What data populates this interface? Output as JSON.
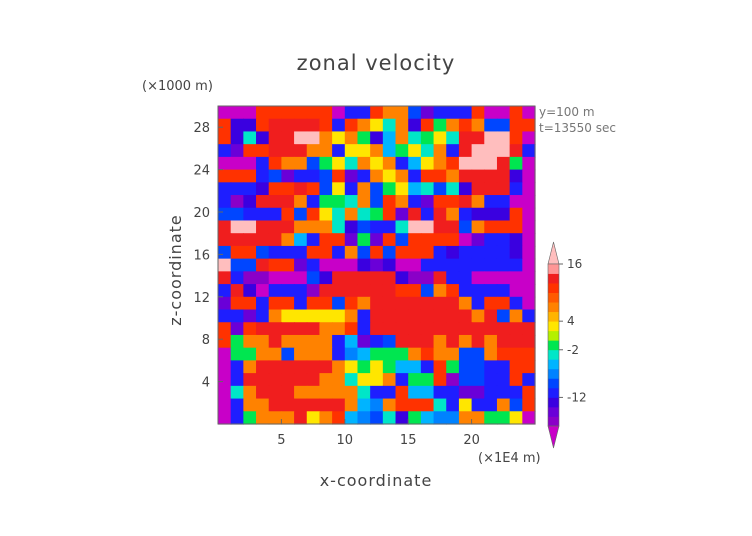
{
  "chart_data": {
    "type": "heatmap",
    "title": "zonal velocity",
    "xlabel": "x-coordinate",
    "ylabel": "z-coordinate",
    "x_unit": "(×1E4 m)",
    "y_unit": "(×1000 m)",
    "annotations": [
      "y=100 m",
      "t=13550 sec"
    ],
    "xlim": [
      0,
      25
    ],
    "ylim": [
      0,
      30
    ],
    "x_ticks": [
      5,
      10,
      15,
      20
    ],
    "y_ticks": [
      4,
      8,
      12,
      16,
      20,
      24,
      28
    ],
    "colorbar": {
      "levels": [
        -18,
        -16,
        -14,
        -12,
        -10,
        -8,
        -6,
        -4,
        -2,
        0,
        2,
        4,
        6,
        8,
        10,
        12,
        14,
        16,
        18
      ],
      "colors": [
        "#c800c8",
        "#8a00c8",
        "#6a00d8",
        "#3a00e0",
        "#1e1eff",
        "#0046ff",
        "#0082ff",
        "#00b4ff",
        "#00e6c8",
        "#00e650",
        "#b4f000",
        "#ffe600",
        "#ffb400",
        "#ff8200",
        "#ff5a00",
        "#ff3200",
        "#f01e1e",
        "#ff9696",
        "#ffbebe"
      ],
      "tick_labels": [
        "16",
        "4",
        "-2",
        "-12"
      ],
      "tick_values": [
        16,
        4,
        -2,
        -12
      ]
    },
    "field_rows": [
      "WWWFFFFFFWBBFOOKNBBBFWWFW",
      "FDDFMMMMFBFOYEODFGOFOKKFF",
      "FDEDMMPPOYOGDLOEGYEMMPPFW",
      "BNFFMMMOOBYYOLGYEOBMPPPMB",
      "WWWBFOOKGYEOYOBLYOFPPPMGW",
      "FFFBKNBBKFNBOYOBFFOMMMMDW",
      "BBBDFFMFKYBOKGYLEKEDMMMBW",
      "BCDMMMOBGGEOKFOBNFFMOBBWW",
      "KKBBBFKFYEOEGFNMBMOBDDDFW",
      "MPPMMMOOOEDKBBEPPMMKOFFFW",
      "MMMMMOLBFFNGNFKFFFFWNBBDW",
      "KFFKBBBFFBOKFKFFFBDBBBBDW",
      "PKKMFFNBWWWDNDWWBBBBBBBBW",
      "MBCCWWWKDMMMMMDCCMBBWWWWW",
      "BMDWBBBCMMMMMMFFKOFBBBBWW",
      "NFFBFFBFFKFOMMMMMMMOBFFBW",
      "BBNBOYYYYYOBMMMMMMMMOMKOB",
      "FNFMMMMMOOFBMMMMMMMMMMMMM",
      "FGOOMOOOOBLNBKMMMOMOMOMMM",
      "WGGOOKOOOBHLGGGOFOOKKOFFF",
      "WBOMMMMMMOYGYGLLBFGKKBBFF",
      "WBMMMMMMOOEYYOBGGFCKKBBFB",
      "WEOMMMOOOOOEBBFLLBBNNBBBF",
      "WBOOMMMMMMOLHOFFFEBYBBOKF",
      "WBGOOOMYOFLHKEDGLHHOOGGYW"
    ],
    "field_legend": {
      "W": -18,
      "C": -16,
      "N": -14,
      "D": -12,
      "B": -10,
      "K": -8,
      "H": -6,
      "L": -4,
      "E": -2,
      "G": 0,
      "Y": 4,
      "O": 8,
      "F": 12,
      "M": 14,
      "P": 18
    }
  }
}
